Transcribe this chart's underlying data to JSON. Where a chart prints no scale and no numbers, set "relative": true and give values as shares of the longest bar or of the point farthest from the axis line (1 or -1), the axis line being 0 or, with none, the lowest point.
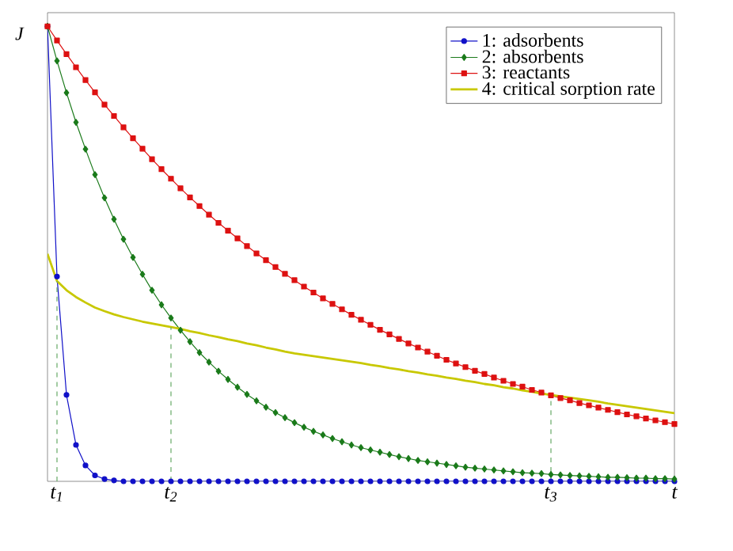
{
  "chart_data": {
    "type": "line",
    "relative": true,
    "ylabel": "J",
    "categories": [
      null,
      "t$_{1}$",
      null,
      null,
      null,
      null,
      null,
      null,
      null,
      null,
      null,
      null,
      null,
      "t$_{2}$",
      null,
      null,
      null,
      null,
      null,
      null,
      null,
      null,
      null,
      null,
      null,
      null,
      null,
      null,
      null,
      null,
      null,
      null,
      null,
      null,
      null,
      null,
      null,
      null,
      null,
      null,
      null,
      null,
      null,
      null,
      null,
      null,
      null,
      null,
      null,
      null,
      null,
      null,
      null,
      "t$_{3}$",
      null,
      null,
      null,
      null,
      null,
      null,
      null,
      null,
      null,
      null,
      null,
      null,
      "t"
    ],
    "tick_labels": "x",
    "legend": "top right",
    "grid": false,
    "ref_lines": [
      {
        "axis": "x",
        "value": "t$_{1}$",
        "color": "#66aa66",
        "line_style": "dashed"
      },
      {
        "axis": "x",
        "value": "t$_{2}$",
        "color": "#66aa66",
        "line_style": "dashed"
      },
      {
        "axis": "x",
        "value": "t$_{3}$",
        "color": "#66aa66",
        "line_style": "dashed"
      }
    ],
    "series": [
      {
        "name": "1: adsorbents",
        "color": "#1010c8",
        "marker": "circle",
        "values": [
          1.0,
          0.45,
          0.19,
          0.08,
          0.035,
          0.013,
          0.005,
          0.002,
          0,
          0,
          0,
          0,
          0,
          0,
          0,
          0,
          0,
          0,
          0,
          0,
          0,
          0,
          0,
          0,
          0,
          0,
          0,
          0,
          0,
          0,
          0,
          0,
          0,
          0,
          0,
          0,
          0,
          0,
          0,
          0,
          0,
          0,
          0,
          0,
          0,
          0,
          0,
          0,
          0,
          0,
          0,
          0,
          0,
          0,
          0,
          0,
          0,
          0,
          0,
          0,
          0,
          0,
          0,
          0,
          0,
          0,
          0
        ]
      },
      {
        "name": "2: absorbents",
        "color": "#1a7a1a",
        "marker": "diamond",
        "values": [
          1.0,
          0.924,
          0.854,
          0.789,
          0.73,
          0.674,
          0.623,
          0.576,
          0.532,
          0.492,
          0.455,
          0.42,
          0.388,
          0.359,
          0.332,
          0.307,
          0.283,
          0.262,
          0.242,
          0.224,
          0.207,
          0.191,
          0.177,
          0.163,
          0.151,
          0.14,
          0.129,
          0.119,
          0.11,
          0.102,
          0.094,
          0.087,
          0.08,
          0.074,
          0.069,
          0.064,
          0.059,
          0.054,
          0.05,
          0.046,
          0.043,
          0.04,
          0.037,
          0.034,
          0.031,
          0.029,
          0.027,
          0.025,
          0.023,
          0.021,
          0.019,
          0.018,
          0.017,
          0.015,
          0.014,
          0.013,
          0.012,
          0.011,
          0.01,
          0.009,
          0.009,
          0.008,
          0.007,
          0.007,
          0.006,
          0.006,
          0.005
        ]
      },
      {
        "name": "3: reactants",
        "color": "#dd1111",
        "marker": "square",
        "values": [
          1.0,
          0.969,
          0.939,
          0.91,
          0.882,
          0.855,
          0.828,
          0.803,
          0.778,
          0.754,
          0.731,
          0.708,
          0.686,
          0.665,
          0.644,
          0.624,
          0.605,
          0.586,
          0.568,
          0.551,
          0.534,
          0.517,
          0.501,
          0.486,
          0.471,
          0.456,
          0.442,
          0.428,
          0.415,
          0.402,
          0.39,
          0.378,
          0.366,
          0.355,
          0.344,
          0.333,
          0.323,
          0.313,
          0.303,
          0.294,
          0.285,
          0.276,
          0.267,
          0.259,
          0.251,
          0.243,
          0.236,
          0.228,
          0.221,
          0.214,
          0.208,
          0.201,
          0.195,
          0.189,
          0.183,
          0.178,
          0.172,
          0.167,
          0.162,
          0.157,
          0.152,
          0.147,
          0.143,
          0.138,
          0.134,
          0.13,
          0.126
        ]
      },
      {
        "name": "4: critical sorption rate",
        "color": "#c8c800",
        "marker": "none",
        "values": [
          0.5,
          0.44,
          0.42,
          0.405,
          0.393,
          0.382,
          0.374,
          0.367,
          0.361,
          0.356,
          0.351,
          0.347,
          0.343,
          0.339,
          0.335,
          0.33,
          0.326,
          0.321,
          0.317,
          0.312,
          0.308,
          0.303,
          0.299,
          0.294,
          0.29,
          0.285,
          0.281,
          0.278,
          0.275,
          0.272,
          0.269,
          0.266,
          0.263,
          0.26,
          0.256,
          0.253,
          0.249,
          0.246,
          0.242,
          0.239,
          0.235,
          0.232,
          0.228,
          0.225,
          0.221,
          0.218,
          0.214,
          0.211,
          0.207,
          0.204,
          0.2,
          0.197,
          0.193,
          0.19,
          0.187,
          0.184,
          0.181,
          0.178,
          0.175,
          0.171,
          0.168,
          0.165,
          0.162,
          0.159,
          0.156,
          0.153,
          0.15
        ]
      }
    ]
  }
}
